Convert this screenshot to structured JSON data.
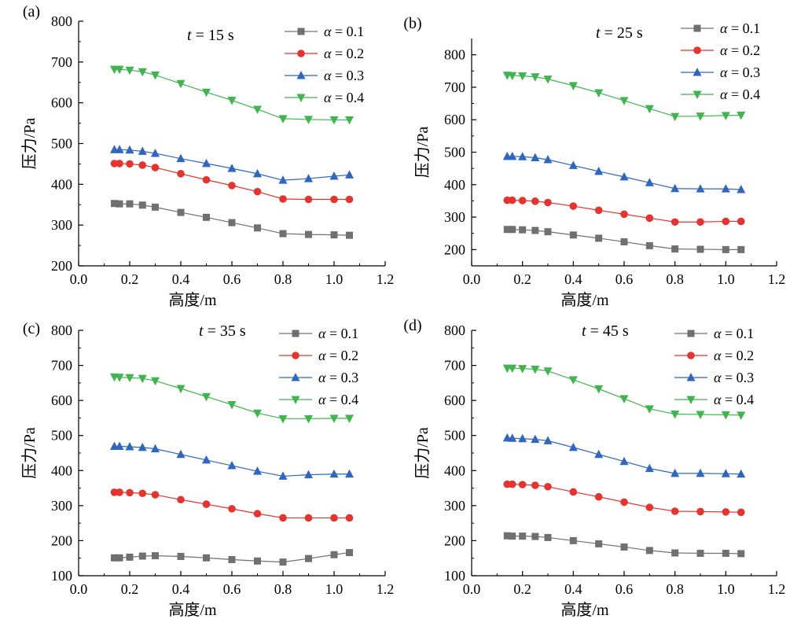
{
  "chart_data": [
    {
      "type": "line",
      "panel_label": "(a)",
      "annotation": {
        "var": "t",
        "rest": " = 15 s"
      },
      "xlabel": "高度/m",
      "ylabel": "压力/Pa",
      "xlim": [
        0.0,
        1.2
      ],
      "ylim": [
        200,
        800
      ],
      "xticks": [
        "0.0",
        "0.2",
        "0.4",
        "0.6",
        "0.8",
        "1.0",
        "1.2"
      ],
      "yticks": [
        "200",
        "300",
        "400",
        "500",
        "600",
        "700",
        "800"
      ],
      "x": [
        0.14,
        0.16,
        0.2,
        0.25,
        0.3,
        0.4,
        0.5,
        0.6,
        0.7,
        0.8,
        0.9,
        1.0,
        1.06
      ],
      "legend_position": "top-right",
      "series": [
        {
          "name": "α = 0.1",
          "values": [
            353,
            352,
            352,
            349,
            344,
            331,
            319,
            306,
            293,
            279,
            277,
            276,
            275
          ]
        },
        {
          "name": "α = 0.2",
          "values": [
            451,
            451,
            450,
            447,
            441,
            426,
            411,
            397,
            382,
            364,
            363,
            363,
            363
          ]
        },
        {
          "name": "α = 0.3",
          "values": [
            485,
            485,
            484,
            481,
            476,
            463,
            451,
            439,
            426,
            410,
            414,
            420,
            423
          ]
        },
        {
          "name": "α = 0.4",
          "values": [
            682,
            682,
            680,
            676,
            668,
            647,
            626,
            606,
            584,
            561,
            559,
            558,
            558
          ]
        }
      ]
    },
    {
      "type": "line",
      "panel_label": "(b)",
      "annotation": {
        "var": "t",
        "rest": " = 25 s"
      },
      "xlabel": "高度/m",
      "ylabel": "压力/Pa",
      "xlim": [
        0.0,
        1.2
      ],
      "ylim": [
        150,
        850
      ],
      "xticks": [
        "0.0",
        "0.2",
        "0.4",
        "0.6",
        "0.8",
        "1.0",
        "1.2"
      ],
      "yticks": [
        "200",
        "300",
        "400",
        "500",
        "600",
        "700",
        "800"
      ],
      "x": [
        0.14,
        0.16,
        0.2,
        0.25,
        0.3,
        0.4,
        0.5,
        0.6,
        0.7,
        0.8,
        0.9,
        1.0,
        1.06
      ],
      "legend_position": "top-right",
      "series": [
        {
          "name": "α = 0.1",
          "values": [
            262,
            262,
            261,
            259,
            255,
            245,
            235,
            224,
            212,
            202,
            201,
            200,
            200
          ]
        },
        {
          "name": "α = 0.2",
          "values": [
            352,
            352,
            351,
            349,
            345,
            334,
            321,
            309,
            297,
            285,
            285,
            287,
            287
          ]
        },
        {
          "name": "α = 0.3",
          "values": [
            487,
            487,
            486,
            483,
            477,
            459,
            441,
            424,
            406,
            388,
            387,
            387,
            385
          ]
        },
        {
          "name": "α = 0.4",
          "values": [
            737,
            736,
            735,
            732,
            725,
            705,
            683,
            659,
            634,
            610,
            611,
            613,
            614
          ]
        }
      ]
    },
    {
      "type": "line",
      "panel_label": "(c)",
      "annotation": {
        "var": "t",
        "rest": " = 35 s"
      },
      "xlabel": "高度/m",
      "ylabel": "压力/Pa",
      "xlim": [
        0.0,
        1.2
      ],
      "ylim": [
        100,
        800
      ],
      "xticks": [
        "0.0",
        "0.2",
        "0.4",
        "0.6",
        "0.8",
        "1.0",
        "1.2"
      ],
      "yticks": [
        "100",
        "200",
        "300",
        "400",
        "500",
        "600",
        "700",
        "800"
      ],
      "x": [
        0.14,
        0.16,
        0.2,
        0.25,
        0.3,
        0.4,
        0.5,
        0.6,
        0.7,
        0.8,
        0.9,
        1.0,
        1.06
      ],
      "legend_position": "top-right",
      "series": [
        {
          "name": "α = 0.1",
          "values": [
            151,
            151,
            153,
            156,
            157,
            155,
            151,
            146,
            142,
            139,
            149,
            160,
            166
          ]
        },
        {
          "name": "α = 0.2",
          "values": [
            338,
            338,
            337,
            335,
            331,
            317,
            304,
            291,
            277,
            265,
            265,
            265,
            265
          ]
        },
        {
          "name": "α = 0.3",
          "values": [
            469,
            469,
            468,
            466,
            462,
            446,
            430,
            414,
            398,
            384,
            388,
            390,
            390
          ]
        },
        {
          "name": "α = 0.4",
          "values": [
            667,
            666,
            665,
            663,
            656,
            634,
            611,
            588,
            564,
            548,
            548,
            549,
            549
          ]
        }
      ]
    },
    {
      "type": "line",
      "panel_label": "(d)",
      "annotation": {
        "var": "t",
        "rest": " = 45 s"
      },
      "xlabel": "高度/m",
      "ylabel": "压力/Pa",
      "xlim": [
        0.0,
        1.2
      ],
      "ylim": [
        100,
        800
      ],
      "xticks": [
        "0.0",
        "0.2",
        "0.4",
        "0.6",
        "0.8",
        "1.0",
        "1.2"
      ],
      "yticks": [
        "100",
        "200",
        "300",
        "400",
        "500",
        "600",
        "700",
        "800"
      ],
      "x": [
        0.14,
        0.16,
        0.2,
        0.25,
        0.3,
        0.4,
        0.5,
        0.6,
        0.7,
        0.8,
        0.9,
        1.0,
        1.06
      ],
      "legend_position": "top-right",
      "series": [
        {
          "name": "α = 0.1",
          "values": [
            214,
            213,
            213,
            212,
            209,
            200,
            191,
            182,
            172,
            165,
            164,
            164,
            163
          ]
        },
        {
          "name": "α = 0.2",
          "values": [
            361,
            361,
            360,
            358,
            354,
            339,
            325,
            310,
            295,
            284,
            283,
            282,
            281
          ]
        },
        {
          "name": "α = 0.3",
          "values": [
            493,
            492,
            491,
            489,
            485,
            466,
            446,
            426,
            406,
            392,
            392,
            391,
            390
          ]
        },
        {
          "name": "α = 0.4",
          "values": [
            692,
            692,
            691,
            689,
            684,
            659,
            633,
            605,
            576,
            561,
            560,
            559,
            558
          ]
        }
      ]
    }
  ],
  "style": {
    "series_colors": [
      "#707070",
      "#e8322e",
      "#2f66c4",
      "#3fb54e"
    ],
    "series_markers": [
      "square",
      "circle",
      "triangle-up",
      "triangle-down"
    ]
  }
}
